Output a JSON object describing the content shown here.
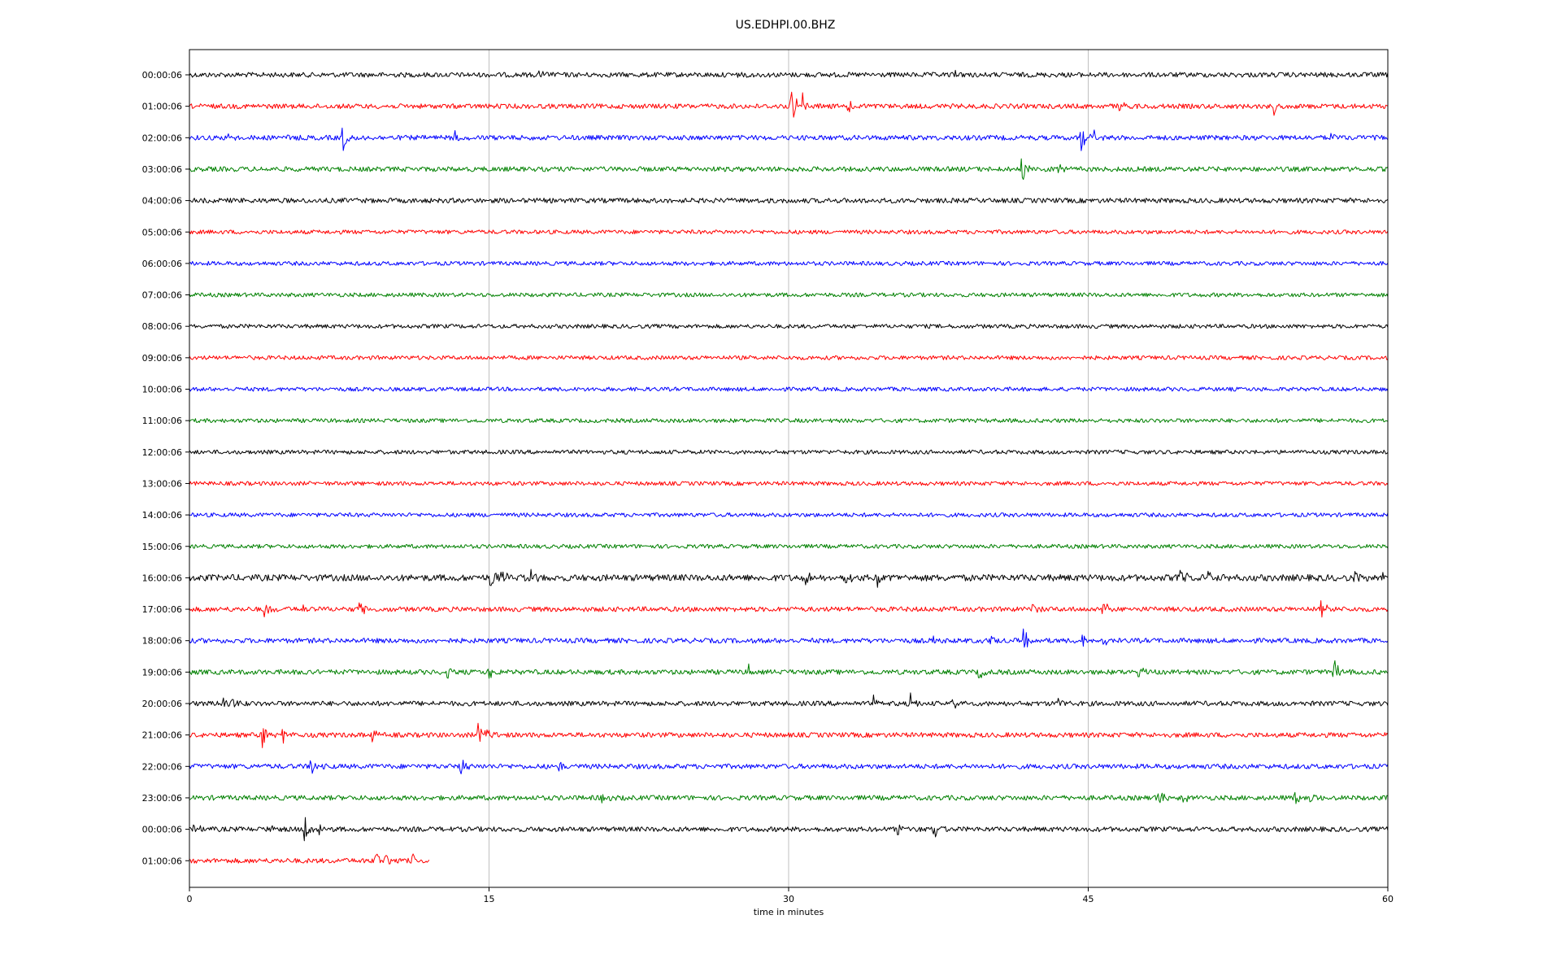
{
  "chart_data": {
    "type": "line",
    "title": "US.EDHPI.00.BHZ",
    "xlabel": "time in minutes",
    "ylabel": "",
    "xlim": [
      0,
      60
    ],
    "xticks": [
      0,
      15,
      30,
      45,
      60
    ],
    "vertical_gridlines_at": [
      15,
      30,
      45
    ],
    "grid": "vertical only",
    "color_cycle": [
      "#000000",
      "#ff0000",
      "#0000ff",
      "#008000"
    ],
    "row_labels": [
      "00:00:06",
      "01:00:06",
      "02:00:06",
      "03:00:06",
      "04:00:06",
      "05:00:06",
      "06:00:06",
      "07:00:06",
      "08:00:06",
      "09:00:06",
      "10:00:06",
      "11:00:06",
      "12:00:06",
      "13:00:06",
      "14:00:06",
      "15:00:06",
      "16:00:06",
      "17:00:06",
      "18:00:06",
      "19:00:06",
      "20:00:06",
      "21:00:06",
      "22:00:06",
      "23:00:06",
      "00:00:06",
      "01:00:06"
    ],
    "trace_end_minutes": [
      60,
      60,
      60,
      60,
      60,
      60,
      60,
      60,
      60,
      60,
      60,
      60,
      60,
      60,
      60,
      60,
      60,
      60,
      60,
      60,
      60,
      60,
      60,
      60,
      60,
      12
    ],
    "noise_level": [
      3,
      3,
      3,
      3,
      3,
      2.5,
      2.5,
      2.5,
      2.5,
      2.5,
      2.5,
      2.5,
      2.5,
      2.5,
      2.5,
      2.5,
      4,
      3,
      3,
      3,
      3,
      3,
      3,
      3,
      3,
      3
    ],
    "events": [
      {
        "row": 0,
        "t": 17.5,
        "amp": 7
      },
      {
        "row": 0,
        "t": 27.2,
        "amp": 5
      },
      {
        "row": 0,
        "t": 38.4,
        "amp": 9
      },
      {
        "row": 1,
        "t": 30.1,
        "amp": 30
      },
      {
        "row": 1,
        "t": 30.7,
        "amp": 20
      },
      {
        "row": 1,
        "t": 33.0,
        "amp": 7
      },
      {
        "row": 1,
        "t": 46.5,
        "amp": 9
      },
      {
        "row": 1,
        "t": 54.3,
        "amp": 9
      },
      {
        "row": 2,
        "t": 2.0,
        "amp": 6
      },
      {
        "row": 2,
        "t": 4.8,
        "amp": 8
      },
      {
        "row": 2,
        "t": 7.7,
        "amp": 18
      },
      {
        "row": 2,
        "t": 13.3,
        "amp": 10
      },
      {
        "row": 2,
        "t": 44.6,
        "amp": 22
      },
      {
        "row": 2,
        "t": 45.3,
        "amp": 10
      },
      {
        "row": 2,
        "t": 57.1,
        "amp": 8
      },
      {
        "row": 3,
        "t": 41.7,
        "amp": 16
      },
      {
        "row": 3,
        "t": 43.5,
        "amp": 9
      },
      {
        "row": 16,
        "t": 15.1,
        "amp": 14
      },
      {
        "row": 16,
        "t": 15.6,
        "amp": 10
      },
      {
        "row": 16,
        "t": 17.1,
        "amp": 9
      },
      {
        "row": 16,
        "t": 30.8,
        "amp": 9
      },
      {
        "row": 16,
        "t": 32.9,
        "amp": 10
      },
      {
        "row": 16,
        "t": 34.5,
        "amp": 12
      },
      {
        "row": 16,
        "t": 49.6,
        "amp": 12
      },
      {
        "row": 16,
        "t": 51.0,
        "amp": 8
      },
      {
        "row": 16,
        "t": 58.3,
        "amp": 9
      },
      {
        "row": 16,
        "t": 59.7,
        "amp": 10
      },
      {
        "row": 17,
        "t": 3.8,
        "amp": 12
      },
      {
        "row": 17,
        "t": 5.7,
        "amp": 7
      },
      {
        "row": 17,
        "t": 8.5,
        "amp": 11
      },
      {
        "row": 17,
        "t": 42.2,
        "amp": 10
      },
      {
        "row": 17,
        "t": 45.7,
        "amp": 14
      },
      {
        "row": 17,
        "t": 56.6,
        "amp": 14
      },
      {
        "row": 18,
        "t": 37.2,
        "amp": 8
      },
      {
        "row": 18,
        "t": 40.1,
        "amp": 9
      },
      {
        "row": 18,
        "t": 41.8,
        "amp": 14
      },
      {
        "row": 18,
        "t": 44.7,
        "amp": 9
      },
      {
        "row": 18,
        "t": 45.7,
        "amp": 12
      },
      {
        "row": 19,
        "t": 5.7,
        "amp": 8
      },
      {
        "row": 19,
        "t": 12.9,
        "amp": 10
      },
      {
        "row": 19,
        "t": 15.0,
        "amp": 14
      },
      {
        "row": 19,
        "t": 28.0,
        "amp": 9
      },
      {
        "row": 19,
        "t": 39.5,
        "amp": 9
      },
      {
        "row": 19,
        "t": 47.5,
        "amp": 12
      },
      {
        "row": 19,
        "t": 57.3,
        "amp": 18
      },
      {
        "row": 20,
        "t": 1.7,
        "amp": 18
      },
      {
        "row": 20,
        "t": 2.1,
        "amp": 13
      },
      {
        "row": 20,
        "t": 34.3,
        "amp": 8
      },
      {
        "row": 20,
        "t": 36.1,
        "amp": 12
      },
      {
        "row": 20,
        "t": 38.2,
        "amp": 8
      },
      {
        "row": 20,
        "t": 43.5,
        "amp": 7
      },
      {
        "row": 21,
        "t": 3.6,
        "amp": 24
      },
      {
        "row": 21,
        "t": 4.7,
        "amp": 9
      },
      {
        "row": 21,
        "t": 9.2,
        "amp": 10
      },
      {
        "row": 21,
        "t": 14.5,
        "amp": 20
      },
      {
        "row": 21,
        "t": 14.9,
        "amp": 14
      },
      {
        "row": 22,
        "t": 6.1,
        "amp": 12
      },
      {
        "row": 22,
        "t": 13.6,
        "amp": 14
      },
      {
        "row": 22,
        "t": 18.5,
        "amp": 10
      },
      {
        "row": 23,
        "t": 20.6,
        "amp": 9
      },
      {
        "row": 23,
        "t": 48.5,
        "amp": 12
      },
      {
        "row": 23,
        "t": 49.7,
        "amp": 9
      },
      {
        "row": 23,
        "t": 55.4,
        "amp": 10
      },
      {
        "row": 23,
        "t": 56.1,
        "amp": 11
      },
      {
        "row": 24,
        "t": 0.2,
        "amp": 9
      },
      {
        "row": 24,
        "t": 3.9,
        "amp": 10
      },
      {
        "row": 24,
        "t": 5.8,
        "amp": 18
      },
      {
        "row": 24,
        "t": 6.5,
        "amp": 10
      },
      {
        "row": 24,
        "t": 35.5,
        "amp": 9
      },
      {
        "row": 24,
        "t": 37.3,
        "amp": 17
      },
      {
        "row": 25,
        "t": 9.3,
        "amp": 18
      },
      {
        "row": 25,
        "t": 9.8,
        "amp": 12
      },
      {
        "row": 25,
        "t": 11.2,
        "amp": 8
      }
    ]
  }
}
